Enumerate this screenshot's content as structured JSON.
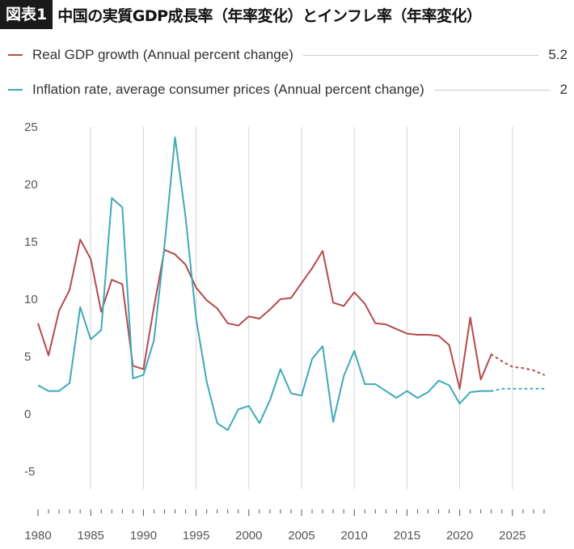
{
  "header": {
    "badge": "図表1",
    "title": "中国の実質GDP成長率（年率変化）とインフレ率（年率変化）"
  },
  "legend": [
    {
      "label": "Real GDP growth (Annual percent change)",
      "value": "5.2",
      "color": "#b54a4f"
    },
    {
      "label": "Inflation rate, average consumer prices (Annual percent change)",
      "value": "2",
      "color": "#3eaab8"
    }
  ],
  "chart_data": {
    "type": "line",
    "xlim": [
      1980,
      2029
    ],
    "ylim": [
      -5,
      25
    ],
    "yticks": [
      25,
      20,
      15,
      10,
      5,
      0,
      -5
    ],
    "ytick_labels": [
      "25",
      "20",
      "15",
      "10",
      "5",
      "0",
      "-5"
    ],
    "xticks": [
      1980,
      1985,
      1990,
      1995,
      2000,
      2005,
      2010,
      2015,
      2020,
      2025
    ],
    "xtick_labels": [
      "1980",
      "1985",
      "1990",
      "1995",
      "2000",
      "2005",
      "2010",
      "2015",
      "2020",
      "2025"
    ],
    "grid_x": [
      1985,
      1990,
      1995,
      2000,
      2005,
      2010,
      2015,
      2020,
      2025
    ],
    "series": [
      {
        "name": "Real GDP growth (Annual percent change)",
        "color": "#b54a4f",
        "x": [
          1980,
          1981,
          1982,
          1983,
          1984,
          1985,
          1986,
          1987,
          1988,
          1989,
          1990,
          1991,
          1992,
          1993,
          1994,
          1995,
          1996,
          1997,
          1998,
          1999,
          2000,
          2001,
          2002,
          2003,
          2004,
          2005,
          2006,
          2007,
          2008,
          2009,
          2010,
          2011,
          2012,
          2013,
          2014,
          2015,
          2016,
          2017,
          2018,
          2019,
          2020,
          2021,
          2022,
          2023
        ],
        "y": [
          7.9,
          5.1,
          9.0,
          10.8,
          15.2,
          13.5,
          8.9,
          11.7,
          11.3,
          4.2,
          3.9,
          9.3,
          14.3,
          13.9,
          13.0,
          11.0,
          9.9,
          9.2,
          7.9,
          7.7,
          8.5,
          8.3,
          9.1,
          10.0,
          10.1,
          11.4,
          12.7,
          14.2,
          9.7,
          9.4,
          10.6,
          9.6,
          7.9,
          7.8,
          7.4,
          7.0,
          6.9,
          6.9,
          6.8,
          6.0,
          2.2,
          8.4,
          3.0,
          5.2
        ],
        "proj_x": [
          2023,
          2024,
          2025,
          2026,
          2027,
          2028
        ],
        "proj_y": [
          5.2,
          4.6,
          4.1,
          4.0,
          3.8,
          3.4
        ]
      },
      {
        "name": "Inflation rate, average consumer prices (Annual percent change)",
        "color": "#3eaab8",
        "x": [
          1980,
          1981,
          1982,
          1983,
          1984,
          1985,
          1986,
          1987,
          1988,
          1989,
          1990,
          1991,
          1992,
          1993,
          1994,
          1995,
          1996,
          1997,
          1998,
          1999,
          2000,
          2001,
          2002,
          2003,
          2004,
          2005,
          2006,
          2007,
          2008,
          2009,
          2010,
          2011,
          2012,
          2013,
          2014,
          2015,
          2016,
          2017,
          2018,
          2019,
          2020,
          2021,
          2022,
          2023
        ],
        "y": [
          2.5,
          2.0,
          2.0,
          2.7,
          9.3,
          6.5,
          7.3,
          18.8,
          18.0,
          3.1,
          3.4,
          6.4,
          14.7,
          24.1,
          17.1,
          8.3,
          2.8,
          -0.8,
          -1.4,
          0.4,
          0.7,
          -0.8,
          1.2,
          3.9,
          1.8,
          1.6,
          4.8,
          5.9,
          -0.7,
          3.3,
          5.5,
          2.6,
          2.6,
          2.0,
          1.4,
          2.0,
          1.4,
          1.9,
          2.9,
          2.5,
          0.9,
          1.9,
          2.0,
          2.0
        ],
        "proj_x": [
          2023,
          2024,
          2025,
          2026,
          2027,
          2028
        ],
        "proj_y": [
          2.0,
          2.2,
          2.2,
          2.2,
          2.2,
          2.2
        ]
      }
    ]
  }
}
